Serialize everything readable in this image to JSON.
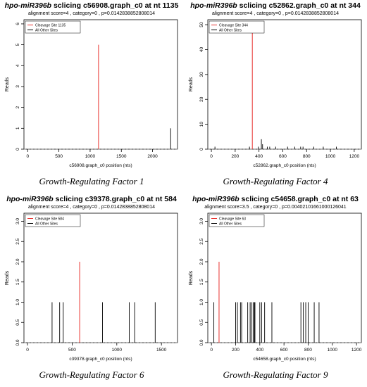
{
  "chart_data": [
    {
      "type": "bar",
      "title_prefix": "hpo-miR396b",
      "title_rest": " sclicing c56908.graph_c0 at nt 1135",
      "subtitle": "alignment score=4 , category=0 , p=0.0142838852808014",
      "xlabel": "c56908.graph_c0 position (nts)",
      "ylabel": "Reads",
      "xlim": [
        -60,
        2400
      ],
      "ylim": [
        0,
        6.2
      ],
      "xticks": [
        0,
        500,
        1000,
        1500,
        2000
      ],
      "yticks": [
        0,
        1,
        2,
        3,
        4,
        5,
        6
      ],
      "legend": [
        "Cleavage Site 1135",
        "All Other Sites"
      ],
      "cleavage": {
        "x": 1135,
        "y": 5
      },
      "others": [
        {
          "x": 2290,
          "y": 1
        }
      ],
      "caption": "Growth-Regulating Factor 1"
    },
    {
      "type": "bar",
      "title_prefix": "hpo-miR396b",
      "title_rest": " sclicing c52862.graph_c0 at nt 344",
      "subtitle": "alignment score=4 , category=0 , p=0.0142838852808014",
      "xlabel": "c52862.graph_c0 position (nts)",
      "ylabel": "Reads",
      "xlim": [
        -30,
        1260
      ],
      "ylim": [
        0,
        52
      ],
      "xticks": [
        0,
        200,
        400,
        600,
        800,
        1000,
        1200
      ],
      "yticks": [
        0,
        10,
        20,
        30,
        40,
        50
      ],
      "legend": [
        "Cleavage Site 344",
        "All Other Sites"
      ],
      "cleavage": {
        "x": 344,
        "y": 47
      },
      "others": [
        {
          "x": 30,
          "y": 1
        },
        {
          "x": 320,
          "y": 1
        },
        {
          "x": 395,
          "y": 1
        },
        {
          "x": 420,
          "y": 4
        },
        {
          "x": 430,
          "y": 2
        },
        {
          "x": 470,
          "y": 1
        },
        {
          "x": 490,
          "y": 1
        },
        {
          "x": 540,
          "y": 1
        },
        {
          "x": 640,
          "y": 1
        },
        {
          "x": 700,
          "y": 1
        },
        {
          "x": 750,
          "y": 1
        },
        {
          "x": 770,
          "y": 1
        },
        {
          "x": 860,
          "y": 1
        },
        {
          "x": 940,
          "y": 1
        },
        {
          "x": 1050,
          "y": 1
        }
      ],
      "caption": "Growth-Regulating Factor 4"
    },
    {
      "type": "bar",
      "title_prefix": "hpo-miR396b",
      "title_rest": " sclicing c39378.graph_c0 at nt 584",
      "subtitle": "alignment score=4 , category=0 , p=0.0142838852808014",
      "xlabel": "c39378.graph_c0 position (nts)",
      "ylabel": "Reads",
      "xlim": [
        -40,
        1680
      ],
      "ylim": [
        0,
        3.2
      ],
      "xticks": [
        0,
        500,
        1000,
        1500
      ],
      "yticks": [
        0,
        0.5,
        1.0,
        1.5,
        2.0,
        2.5,
        3.0
      ],
      "legend": [
        "Cleavage Site 584",
        "All Other Sites"
      ],
      "cleavage": {
        "x": 584,
        "y": 2
      },
      "others": [
        {
          "x": 275,
          "y": 1
        },
        {
          "x": 360,
          "y": 1
        },
        {
          "x": 400,
          "y": 1
        },
        {
          "x": 840,
          "y": 1
        },
        {
          "x": 1140,
          "y": 1
        },
        {
          "x": 1200,
          "y": 1
        },
        {
          "x": 1430,
          "y": 1
        }
      ],
      "caption": "Growth-Regulating Factor 6"
    },
    {
      "type": "bar",
      "title_prefix": "hpo-miR396b",
      "title_rest": " sclicing c54658.graph_c0 at nt 63",
      "subtitle": "alignment score=3.5 , category=0 , p=0.00402101661000126041",
      "xlabel": "c54658.graph_c0 position (nts)",
      "ylabel": "Reads",
      "xlim": [
        -30,
        1240
      ],
      "ylim": [
        0,
        3.2
      ],
      "xticks": [
        0,
        200,
        400,
        600,
        800,
        1000,
        1200
      ],
      "yticks": [
        0,
        0.5,
        1.0,
        1.5,
        2.0,
        2.5,
        3.0
      ],
      "legend": [
        "Cleavage Site 63",
        "All Other Sites"
      ],
      "cleavage": {
        "x": 63,
        "y": 2
      },
      "others": [
        {
          "x": 20,
          "y": 1
        },
        {
          "x": 200,
          "y": 1
        },
        {
          "x": 215,
          "y": 1
        },
        {
          "x": 240,
          "y": 1
        },
        {
          "x": 250,
          "y": 1
        },
        {
          "x": 300,
          "y": 1
        },
        {
          "x": 320,
          "y": 1
        },
        {
          "x": 330,
          "y": 1
        },
        {
          "x": 345,
          "y": 1
        },
        {
          "x": 355,
          "y": 1
        },
        {
          "x": 360,
          "y": 1
        },
        {
          "x": 400,
          "y": 1
        },
        {
          "x": 415,
          "y": 1
        },
        {
          "x": 440,
          "y": 1
        },
        {
          "x": 500,
          "y": 1
        },
        {
          "x": 740,
          "y": 1
        },
        {
          "x": 760,
          "y": 1
        },
        {
          "x": 780,
          "y": 1
        },
        {
          "x": 800,
          "y": 1
        },
        {
          "x": 850,
          "y": 1
        },
        {
          "x": 890,
          "y": 1
        }
      ],
      "caption": "Growth-Regulating Factor 9"
    }
  ],
  "colors": {
    "cleavage": "#e8322f",
    "other": "#000000"
  }
}
